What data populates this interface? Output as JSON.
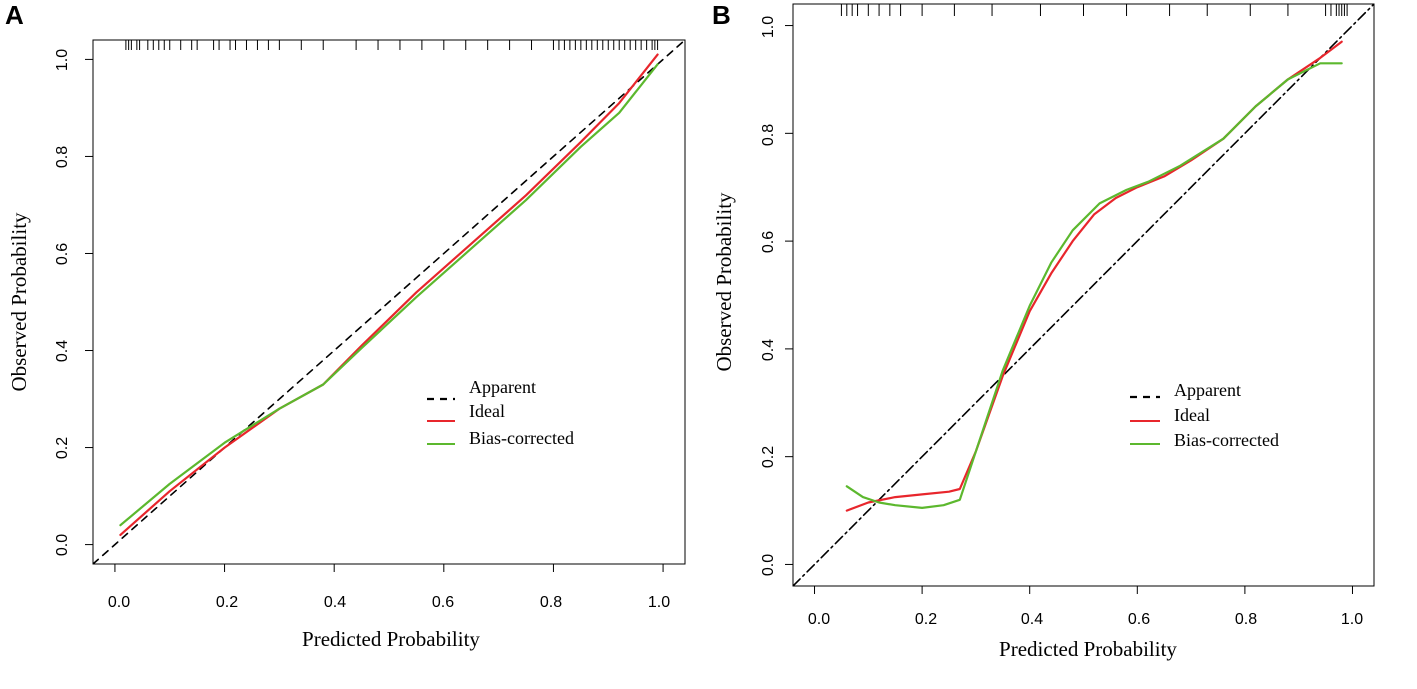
{
  "colors": {
    "apparent": "#000000",
    "ideal": "#e8262c",
    "bias_corrected": "#5cb82e"
  },
  "chart_data": [
    {
      "panel": "A",
      "type": "line",
      "xlabel": "Predicted Probability",
      "ylabel": "Observed Probability",
      "xlim": [
        -0.04,
        1.04
      ],
      "ylim": [
        -0.04,
        1.04
      ],
      "xticks": [
        0.0,
        0.2,
        0.4,
        0.6,
        0.8,
        1.0
      ],
      "yticks": [
        0.0,
        0.2,
        0.4,
        0.6,
        0.8,
        1.0
      ],
      "xtick_labels": [
        "0.0",
        "0.2",
        "0.4",
        "0.6",
        "0.8",
        "1.0"
      ],
      "ytick_labels": [
        "0.0",
        "0.2",
        "0.4",
        "0.6",
        "0.8",
        "1.0"
      ],
      "legend": {
        "position": "center-right",
        "entries": [
          "Apparent",
          "Ideal",
          "Bias-corrected"
        ]
      },
      "series": [
        {
          "name": "Apparent",
          "style": "dashed",
          "x": [
            -0.04,
            1.04
          ],
          "y": [
            -0.04,
            1.04
          ]
        },
        {
          "name": "Ideal",
          "style": "solid",
          "x": [
            0.01,
            0.1,
            0.2,
            0.3,
            0.38,
            0.45,
            0.55,
            0.65,
            0.75,
            0.85,
            0.92,
            0.99
          ],
          "y": [
            0.02,
            0.11,
            0.2,
            0.28,
            0.33,
            0.41,
            0.52,
            0.62,
            0.72,
            0.83,
            0.91,
            1.01
          ]
        },
        {
          "name": "Bias-corrected",
          "style": "solid",
          "x": [
            0.01,
            0.1,
            0.2,
            0.3,
            0.38,
            0.45,
            0.55,
            0.65,
            0.75,
            0.85,
            0.92,
            0.99
          ],
          "y": [
            0.04,
            0.125,
            0.21,
            0.28,
            0.33,
            0.405,
            0.51,
            0.61,
            0.71,
            0.82,
            0.89,
            0.99
          ]
        }
      ],
      "rug_x": [
        0.02,
        0.025,
        0.03,
        0.04,
        0.045,
        0.06,
        0.07,
        0.08,
        0.09,
        0.1,
        0.12,
        0.14,
        0.15,
        0.18,
        0.19,
        0.21,
        0.22,
        0.24,
        0.26,
        0.28,
        0.3,
        0.34,
        0.38,
        0.44,
        0.48,
        0.52,
        0.56,
        0.6,
        0.64,
        0.68,
        0.72,
        0.76,
        0.8,
        0.81,
        0.82,
        0.83,
        0.84,
        0.85,
        0.86,
        0.87,
        0.88,
        0.89,
        0.9,
        0.91,
        0.92,
        0.93,
        0.94,
        0.95,
        0.96,
        0.97,
        0.98,
        0.985,
        0.99
      ]
    },
    {
      "panel": "B",
      "type": "line",
      "xlabel": "Predicted Probability",
      "ylabel": "Observed Probability",
      "xlim": [
        -0.04,
        1.04
      ],
      "ylim": [
        -0.04,
        1.04
      ],
      "xticks": [
        0.0,
        0.2,
        0.4,
        0.6,
        0.8,
        1.0
      ],
      "yticks": [
        0.0,
        0.2,
        0.4,
        0.6,
        0.8,
        1.0
      ],
      "xtick_labels": [
        "0.0",
        "0.2",
        "0.4",
        "0.6",
        "0.8",
        "1.0"
      ],
      "ytick_labels": [
        "0.0",
        "0.2",
        "0.4",
        "0.6",
        "0.8",
        "1.0"
      ],
      "legend": {
        "position": "center-right",
        "entries": [
          "Apparent",
          "Ideal",
          "Bias-corrected"
        ]
      },
      "series": [
        {
          "name": "Apparent",
          "style": "dashdot",
          "x": [
            -0.04,
            1.04
          ],
          "y": [
            -0.04,
            1.04
          ]
        },
        {
          "name": "Ideal",
          "style": "solid",
          "x": [
            0.06,
            0.1,
            0.15,
            0.2,
            0.25,
            0.27,
            0.3,
            0.35,
            0.4,
            0.44,
            0.48,
            0.52,
            0.56,
            0.6,
            0.65,
            0.7,
            0.76,
            0.82,
            0.88,
            0.94,
            0.98
          ],
          "y": [
            0.1,
            0.115,
            0.125,
            0.13,
            0.135,
            0.14,
            0.21,
            0.35,
            0.47,
            0.54,
            0.6,
            0.65,
            0.68,
            0.7,
            0.72,
            0.75,
            0.79,
            0.85,
            0.9,
            0.94,
            0.97
          ]
        },
        {
          "name": "Bias-corrected",
          "style": "solid",
          "x": [
            0.06,
            0.09,
            0.12,
            0.15,
            0.2,
            0.24,
            0.27,
            0.3,
            0.35,
            0.4,
            0.44,
            0.48,
            0.53,
            0.58,
            0.62,
            0.68,
            0.76,
            0.82,
            0.88,
            0.94,
            0.98
          ],
          "y": [
            0.145,
            0.125,
            0.115,
            0.11,
            0.105,
            0.11,
            0.12,
            0.21,
            0.36,
            0.48,
            0.56,
            0.62,
            0.67,
            0.695,
            0.71,
            0.74,
            0.79,
            0.85,
            0.9,
            0.93,
            0.93
          ]
        }
      ],
      "rug_x": [
        0.05,
        0.06,
        0.07,
        0.08,
        0.1,
        0.12,
        0.14,
        0.16,
        0.2,
        0.26,
        0.33,
        0.42,
        0.5,
        0.58,
        0.66,
        0.73,
        0.81,
        0.88,
        0.95,
        0.96,
        0.97,
        0.975,
        0.98,
        0.985,
        0.99
      ]
    }
  ]
}
